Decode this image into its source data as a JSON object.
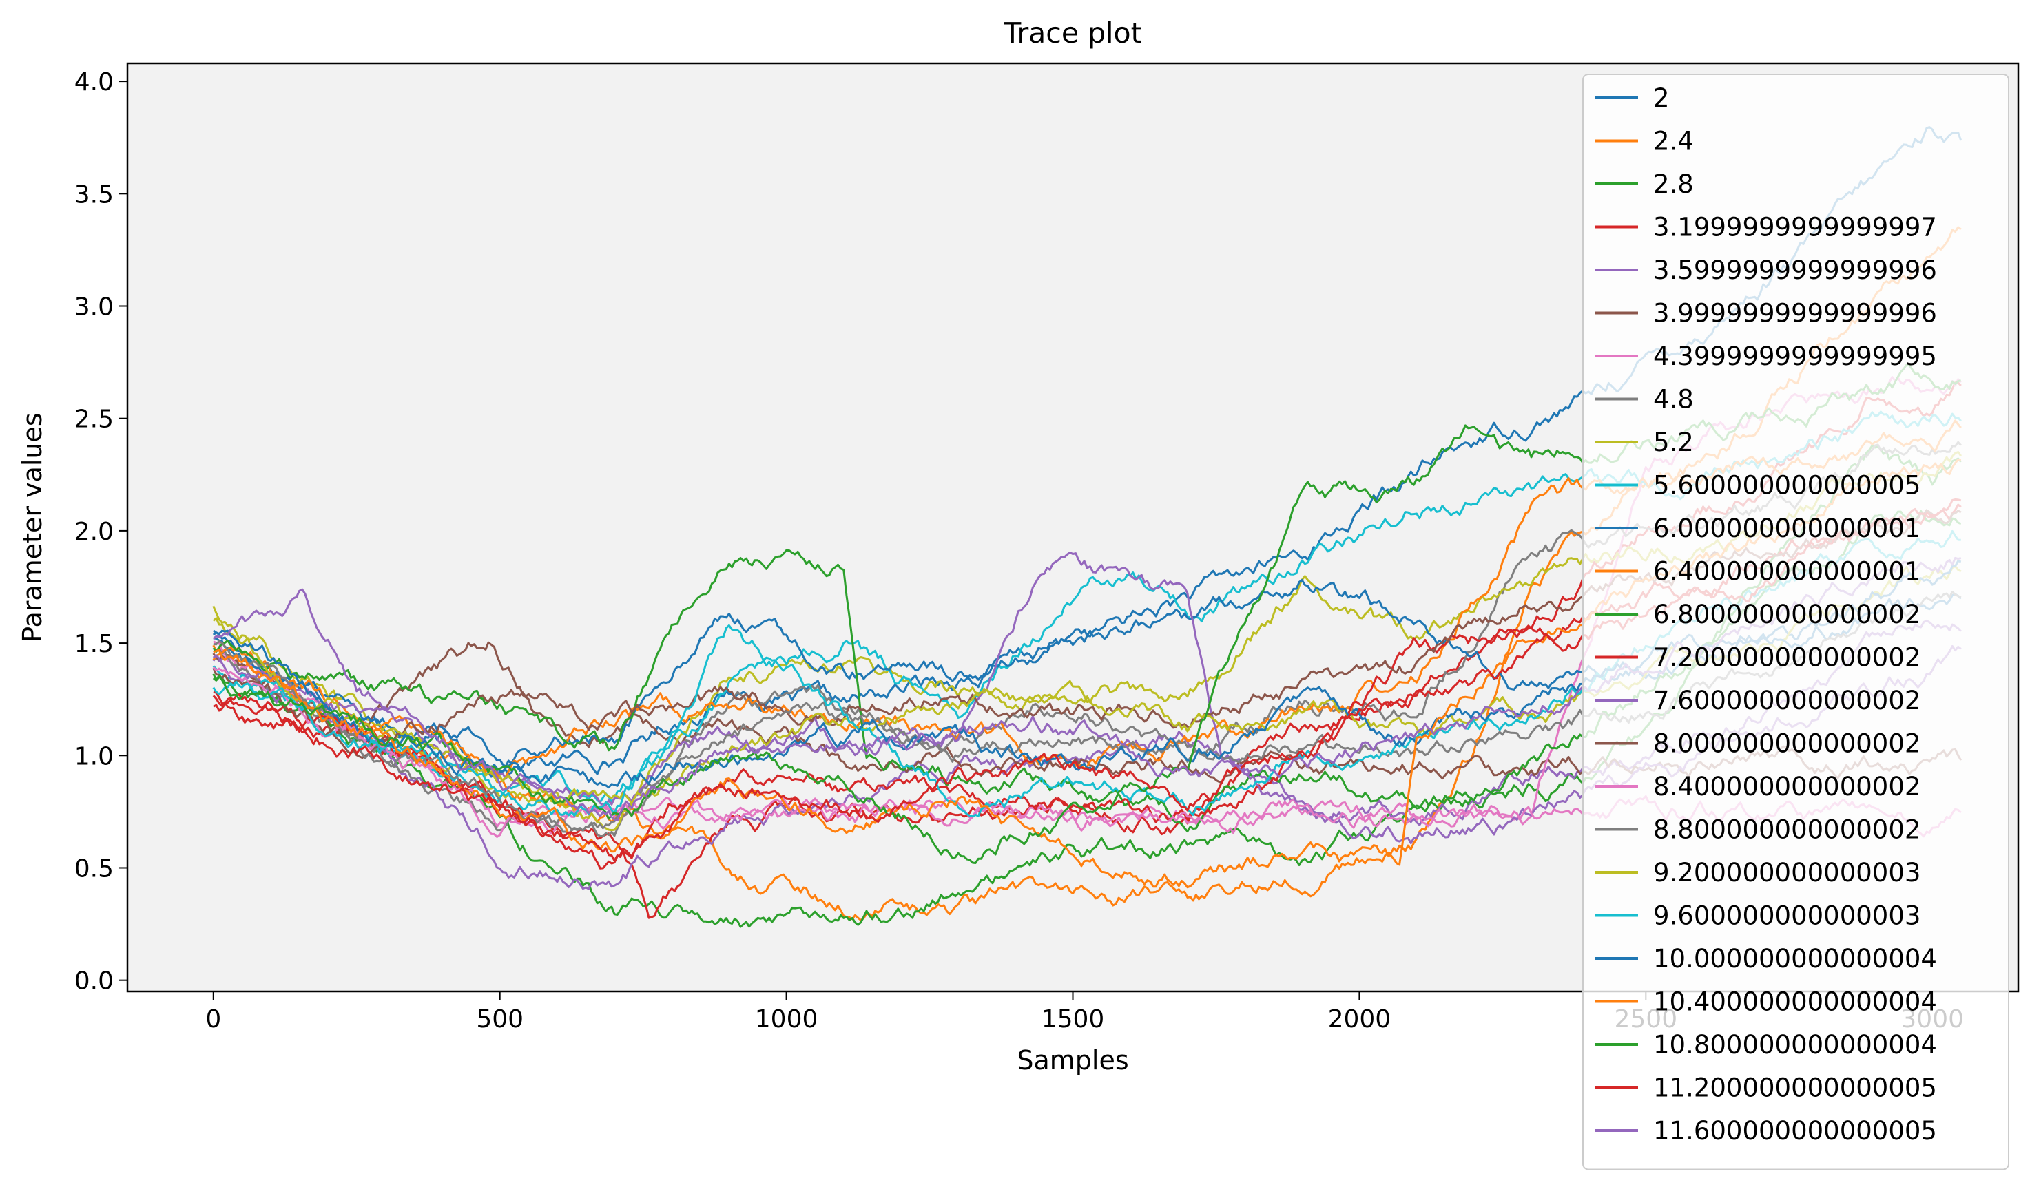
{
  "chart_data": {
    "type": "line",
    "title": "Trace plot",
    "xlabel": "Samples",
    "ylabel": "Parameter values",
    "xlim": [
      -150,
      3150
    ],
    "ylim": [
      -0.05,
      4.08
    ],
    "xticks": [
      0,
      500,
      1000,
      1500,
      2000,
      2500,
      3000
    ],
    "xtick_labels": [
      "0",
      "500",
      "1000",
      "1500",
      "2000",
      "2500",
      "3000"
    ],
    "yticks": [
      0.0,
      0.5,
      1.0,
      1.5,
      2.0,
      2.5,
      3.0,
      3.5,
      4.0
    ],
    "ytick_labels": [
      "0.0",
      "0.5",
      "1.0",
      "1.5",
      "2.0",
      "2.5",
      "3.0",
      "3.5",
      "4.0"
    ],
    "plot_background": "#f2f2f2",
    "grid": false,
    "legend_position": "upper right",
    "series": [
      {
        "name": "2",
        "color": "#1f77b4",
        "x": [
          0,
          250,
          500,
          700,
          900,
          1100,
          1300,
          1500,
          1700,
          1900,
          2100,
          2200,
          2300,
          2400,
          2500,
          2600,
          2700,
          2800,
          2900,
          3000,
          3050
        ],
        "y": [
          1.55,
          1.2,
          0.95,
          1.0,
          1.3,
          1.2,
          1.35,
          1.5,
          1.7,
          1.9,
          2.25,
          2.4,
          2.5,
          2.6,
          2.75,
          2.9,
          3.1,
          3.3,
          3.55,
          3.8,
          3.72
        ]
      },
      {
        "name": "2.4",
        "color": "#ff7f0e",
        "x": [
          0,
          250,
          500,
          700,
          900,
          1100,
          1300,
          1500,
          1700,
          1900,
          2100,
          2200,
          2300,
          2400,
          2500,
          2600,
          2700,
          2800,
          2900,
          3000,
          3050
        ],
        "y": [
          1.5,
          1.15,
          0.9,
          0.75,
          0.5,
          0.35,
          0.3,
          0.4,
          0.35,
          0.5,
          0.6,
          1.0,
          1.8,
          2.0,
          2.2,
          2.3,
          2.5,
          2.8,
          3.0,
          3.2,
          3.35
        ]
      },
      {
        "name": "2.8",
        "color": "#2ca02c",
        "x": [
          0,
          250,
          500,
          700,
          900,
          1000,
          1100,
          1300,
          1500,
          1700,
          1900,
          2100,
          2200,
          2300,
          2400,
          2500,
          2600,
          2700,
          2800,
          2900,
          3000,
          3050
        ],
        "y": [
          1.35,
          1.1,
          0.75,
          0.3,
          0.25,
          0.2,
          0.3,
          0.4,
          0.55,
          0.6,
          0.55,
          0.7,
          0.8,
          0.85,
          0.9,
          1.1,
          1.5,
          1.8,
          2.1,
          2.4,
          2.2,
          2.3
        ]
      },
      {
        "name": "3.1999999999999997",
        "color": "#d62728",
        "x": [
          0,
          250,
          500,
          700,
          760,
          900,
          1100,
          1300,
          1500,
          1700,
          1900,
          2100,
          2200,
          2300,
          2400,
          2500,
          2600,
          2700,
          2800,
          2900,
          3000,
          3050
        ],
        "y": [
          1.22,
          1.1,
          0.8,
          0.55,
          0.25,
          0.7,
          0.75,
          0.7,
          0.85,
          0.7,
          1.1,
          1.3,
          1.5,
          1.6,
          1.8,
          2.0,
          2.1,
          2.2,
          2.4,
          2.6,
          2.55,
          2.65
        ]
      },
      {
        "name": "3.5999999999999996",
        "color": "#9467bd",
        "x": [
          0,
          250,
          500,
          700,
          900,
          1100,
          1300,
          1500,
          1700,
          1900,
          2100,
          2300,
          2500,
          2700,
          2900,
          3050
        ],
        "y": [
          1.42,
          1.15,
          0.55,
          0.45,
          0.75,
          0.85,
          1.0,
          0.95,
          1.1,
          0.8,
          0.75,
          0.9,
          1.0,
          1.2,
          1.45,
          1.6
        ]
      },
      {
        "name": "3.9999999999999996",
        "color": "#8c564b",
        "x": [
          0,
          250,
          480,
          560,
          700,
          900,
          1120,
          1300,
          1500,
          1700,
          1900,
          2100,
          2300,
          2500,
          2700,
          2900,
          3050
        ],
        "y": [
          1.45,
          1.1,
          1.5,
          1.2,
          1.1,
          1.1,
          0.97,
          0.97,
          0.97,
          0.97,
          0.97,
          0.97,
          0.97,
          0.97,
          0.97,
          0.97,
          0.97
        ]
      },
      {
        "name": "4.3999999999999995",
        "color": "#e377c2",
        "x": [
          0,
          250,
          400,
          500,
          600,
          700,
          900,
          1100,
          1300,
          1500,
          1700,
          1900,
          2100,
          2300,
          2500,
          2700,
          2900,
          3050
        ],
        "y": [
          1.5,
          1.1,
          0.9,
          0.74,
          0.74,
          0.74,
          0.74,
          0.73,
          0.73,
          0.73,
          0.73,
          0.73,
          0.73,
          0.73,
          2.3,
          2.5,
          2.6,
          2.7
        ]
      },
      {
        "name": "4.8",
        "color": "#7f7f7f",
        "x": [
          0,
          250,
          500,
          700,
          900,
          1100,
          1300,
          1500,
          1700,
          1900,
          2100,
          2300,
          2500,
          2700,
          2900,
          3050
        ],
        "y": [
          1.45,
          1.05,
          0.7,
          0.6,
          1.2,
          1.2,
          1.1,
          1.25,
          1.0,
          1.25,
          1.2,
          1.9,
          2.0,
          2.1,
          2.3,
          2.4
        ]
      },
      {
        "name": "5.2",
        "color": "#bcbd22",
        "x": [
          0,
          250,
          500,
          700,
          900,
          1100,
          1300,
          1500,
          1700,
          1900,
          2100,
          2300,
          2500,
          2700,
          2900,
          3050
        ],
        "y": [
          1.65,
          1.2,
          0.85,
          0.7,
          1.4,
          1.45,
          1.3,
          1.2,
          1.3,
          1.75,
          1.5,
          1.8,
          1.9,
          2.0,
          2.2,
          2.3
        ]
      },
      {
        "name": "5.600000000000005",
        "color": "#17becf",
        "x": [
          0,
          250,
          500,
          700,
          900,
          1100,
          1300,
          1500,
          1600,
          1700,
          1800,
          1900,
          2000,
          2100,
          2300,
          2500,
          2700,
          2900,
          3050
        ],
        "y": [
          1.38,
          1.1,
          0.85,
          0.8,
          1.3,
          1.5,
          1.2,
          1.7,
          1.85,
          1.65,
          1.75,
          1.9,
          2.0,
          2.13,
          2.13,
          2.2,
          2.3,
          2.45,
          2.5
        ]
      },
      {
        "name": "6.000000000000001",
        "color": "#1f77b4",
        "x": [
          0,
          250,
          500,
          700,
          900,
          1100,
          1300,
          1500,
          1700,
          1900,
          2100,
          2300,
          2500,
          2700,
          2900,
          3050
        ],
        "y": [
          1.5,
          1.15,
          1.0,
          1.1,
          1.65,
          1.4,
          1.35,
          1.5,
          1.6,
          1.8,
          1.6,
          1.3,
          1.4,
          1.5,
          1.6,
          1.7
        ]
      },
      {
        "name": "6.400000000000001",
        "color": "#ff7f0e",
        "x": [
          0,
          250,
          500,
          700,
          900,
          1100,
          1300,
          1500,
          1700,
          1900,
          2100,
          2300,
          2500,
          2700,
          2900,
          3050
        ],
        "y": [
          1.45,
          1.2,
          0.9,
          1.15,
          1.25,
          1.2,
          1.1,
          1.0,
          1.05,
          1.2,
          1.35,
          2.1,
          2.2,
          2.3,
          2.4,
          2.45
        ]
      },
      {
        "name": "6.800000000000002",
        "color": "#2ca02c",
        "x": [
          0,
          250,
          500,
          700,
          800,
          900,
          1100,
          1140,
          1300,
          1500,
          1700,
          1900,
          2100,
          2200,
          2300,
          2500,
          2700,
          2900,
          3050
        ],
        "y": [
          1.5,
          1.3,
          1.2,
          1.0,
          1.6,
          1.9,
          1.9,
          1.0,
          0.9,
          0.85,
          0.75,
          0.9,
          0.8,
          0.85,
          0.95,
          1.3,
          1.7,
          2.0,
          2.1
        ]
      },
      {
        "name": "7.200000000000002",
        "color": "#d62728",
        "x": [
          0,
          250,
          500,
          700,
          900,
          1100,
          1300,
          1500,
          1700,
          1900,
          2100,
          2300,
          2500,
          2700,
          2900,
          3050
        ],
        "y": [
          1.3,
          1.1,
          0.8,
          0.5,
          0.95,
          0.85,
          0.85,
          0.8,
          0.7,
          1.0,
          1.45,
          1.55,
          1.7,
          1.85,
          2.0,
          2.1
        ]
      },
      {
        "name": "7.600000000000002",
        "color": "#9467bd",
        "x": [
          0,
          250,
          500,
          700,
          900,
          1100,
          1300,
          1440,
          1500,
          1600,
          1700,
          1760,
          1900,
          2100,
          2300,
          2500,
          2700,
          2900,
          3050
        ],
        "y": [
          1.45,
          1.2,
          0.95,
          0.85,
          1.1,
          1.05,
          1.08,
          1.8,
          1.85,
          1.75,
          1.7,
          1.0,
          0.7,
          0.65,
          0.75,
          0.9,
          1.1,
          1.3,
          1.45
        ]
      },
      {
        "name": "8.000000000000002",
        "color": "#8c564b",
        "x": [
          0,
          250,
          500,
          700,
          900,
          1100,
          1300,
          1500,
          1700,
          1900,
          2100,
          2300,
          2500,
          2700,
          2900,
          3050
        ],
        "y": [
          1.4,
          1.05,
          1.25,
          1.15,
          1.25,
          1.2,
          1.3,
          1.15,
          1.2,
          1.35,
          1.4,
          1.7,
          1.8,
          1.9,
          2.0,
          2.1
        ]
      },
      {
        "name": "8.400000000000002",
        "color": "#e377c2",
        "x": [
          0,
          250,
          500,
          700,
          900,
          1100,
          1300,
          1500,
          1700,
          1900,
          2100,
          2300,
          2500,
          2700,
          2900,
          3050
        ],
        "y": [
          1.4,
          1.1,
          0.74,
          0.74,
          0.74,
          0.73,
          0.73,
          0.73,
          0.73,
          0.73,
          0.73,
          0.73,
          0.73,
          0.73,
          0.73,
          0.73
        ]
      },
      {
        "name": "8.800000000000002",
        "color": "#7f7f7f",
        "x": [
          0,
          250,
          500,
          700,
          900,
          1100,
          1300,
          1500,
          1700,
          1900,
          2100,
          2300,
          2500,
          2700,
          2900,
          3050
        ],
        "y": [
          1.5,
          1.1,
          0.8,
          0.65,
          1.1,
          1.15,
          1.05,
          1.1,
          1.0,
          1.05,
          1.0,
          1.1,
          1.2,
          1.4,
          1.6,
          1.7
        ]
      },
      {
        "name": "9.200000000000003",
        "color": "#bcbd22",
        "x": [
          0,
          250,
          500,
          700,
          900,
          1100,
          1300,
          1500,
          1700,
          1900,
          2100,
          2300,
          2500,
          2700,
          2900,
          3050
        ],
        "y": [
          1.6,
          1.15,
          0.9,
          0.75,
          1.05,
          1.15,
          1.2,
          1.3,
          1.1,
          1.2,
          1.1,
          1.15,
          1.35,
          1.5,
          1.7,
          1.8
        ]
      },
      {
        "name": "9.600000000000003",
        "color": "#17becf",
        "x": [
          0,
          250,
          500,
          700,
          900,
          1100,
          1300,
          1500,
          1700,
          1900,
          2100,
          2300,
          2500,
          2700,
          2900,
          3050
        ],
        "y": [
          1.3,
          1.1,
          0.85,
          0.75,
          1.55,
          1.2,
          0.8,
          0.85,
          0.8,
          1.0,
          1.05,
          1.2,
          1.5,
          1.7,
          1.9,
          2.0
        ]
      },
      {
        "name": "10.000000000000004",
        "color": "#1f77b4",
        "x": [
          0,
          250,
          500,
          700,
          900,
          1100,
          1300,
          1500,
          1700,
          1900,
          2100,
          2300,
          2500,
          2700,
          2900,
          3050
        ],
        "y": [
          1.55,
          1.15,
          0.95,
          0.9,
          1.0,
          1.1,
          1.05,
          0.95,
          1.0,
          1.2,
          1.1,
          1.25,
          1.4,
          1.55,
          1.75,
          1.85
        ]
      },
      {
        "name": "10.400000000000004",
        "color": "#ff7f0e",
        "x": [
          0,
          250,
          500,
          700,
          900,
          1100,
          1300,
          1500,
          1700,
          1900,
          2000,
          2070,
          2100,
          2300,
          2500,
          2700,
          2900,
          3050
        ],
        "y": [
          1.45,
          1.1,
          0.8,
          0.55,
          0.85,
          0.75,
          0.8,
          0.55,
          0.45,
          0.55,
          0.5,
          0.5,
          1.05,
          1.55,
          1.8,
          2.0,
          2.2,
          2.3
        ]
      },
      {
        "name": "10.800000000000004",
        "color": "#2ca02c",
        "x": [
          0,
          250,
          500,
          700,
          900,
          1100,
          1300,
          1500,
          1700,
          1900,
          2100,
          2200,
          2300,
          2500,
          2700,
          2900,
          3050
        ],
        "y": [
          1.35,
          1.15,
          0.95,
          0.7,
          1.0,
          0.85,
          0.6,
          0.75,
          0.95,
          2.1,
          2.2,
          2.45,
          2.3,
          2.4,
          2.5,
          2.6,
          2.7
        ]
      },
      {
        "name": "11.200000000000005",
        "color": "#d62728",
        "x": [
          0,
          250,
          500,
          700,
          900,
          1100,
          1300,
          1500,
          1700,
          1900,
          2100,
          2300,
          2500,
          2700,
          2900,
          3050
        ],
        "y": [
          1.25,
          1.05,
          0.75,
          0.55,
          0.85,
          0.75,
          0.9,
          0.95,
          0.8,
          1.05,
          1.3,
          1.45,
          1.6,
          1.8,
          2.0,
          2.1
        ]
      },
      {
        "name": "11.600000000000005",
        "color": "#9467bd",
        "x": [
          0,
          160,
          250,
          500,
          700,
          900,
          1100,
          1300,
          1500,
          1700,
          1900,
          2100,
          2300,
          2500,
          2700,
          2900,
          3050
        ],
        "y": [
          1.5,
          1.7,
          1.3,
          0.9,
          0.7,
          1.05,
          1.0,
          1.1,
          1.15,
          0.95,
          1.0,
          1.1,
          1.2,
          1.45,
          1.6,
          1.8,
          1.9
        ]
      }
    ]
  }
}
